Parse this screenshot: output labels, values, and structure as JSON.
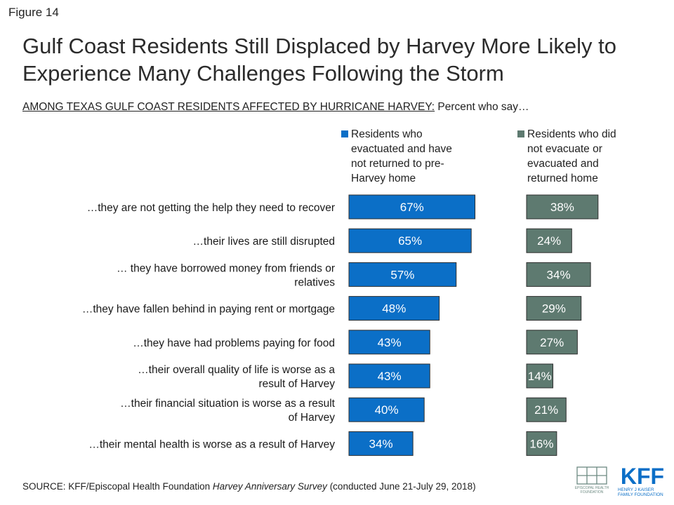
{
  "figure_label": "Figure 14",
  "title": "Gulf Coast Residents Still Displaced by Harvey More Likely to Experience Many Challenges Following the Storm",
  "subtitle": {
    "underlined": "AMONG TEXAS GULF COAST RESIDENTS AFFECTED BY HURRICANE HARVEY:",
    "rest": " Percent who say…"
  },
  "chart_data": {
    "type": "bar",
    "orientation": "horizontal",
    "categories": [
      "…they are not getting the help they need to recover",
      "…their lives are still disrupted",
      "… they have borrowed money from friends or relatives",
      "…they have fallen behind in paying rent or mortgage",
      "…they have had problems paying for food",
      "…their overall quality of life is worse as a result of Harvey",
      "…their financial situation is worse as a result of Harvey",
      "…their mental health is worse as a result of Harvey"
    ],
    "category_lines": [
      [
        "…they are not getting the help they need to recover"
      ],
      [
        "…their lives are still disrupted"
      ],
      [
        "… they have borrowed money from friends or",
        "relatives"
      ],
      [
        "…they have fallen behind in paying rent or mortgage"
      ],
      [
        "…they have had problems paying for food"
      ],
      [
        "…their overall quality of life is worse as a",
        "result of Harvey"
      ],
      [
        "…their financial situation is worse as a result",
        "of Harvey"
      ],
      [
        "…their mental health is worse as a result of Harvey"
      ]
    ],
    "series": [
      {
        "name": "Residents who evactuated and have not returned to pre-Harvey home",
        "legend_lines": [
          "Residents who",
          "evactuated and have",
          "not returned to pre-",
          "Harvey home"
        ],
        "color": "#0b6fc7",
        "values": [
          67,
          65,
          57,
          48,
          43,
          43,
          40,
          34
        ],
        "labels": [
          "67%",
          "65%",
          "57%",
          "48%",
          "43%",
          "43%",
          "40%",
          "34%"
        ]
      },
      {
        "name": "Residents who did not evacuate or evacuated and returned home",
        "legend_lines": [
          "Residents who did",
          "not evacuate or",
          "evacuated and",
          "returned home"
        ],
        "color": "#5e7a70",
        "values": [
          38,
          24,
          34,
          29,
          27,
          14,
          21,
          16
        ],
        "labels": [
          "38%",
          "24%",
          "34%",
          "29%",
          "27%",
          "14%",
          "21%",
          "16%"
        ]
      }
    ]
  },
  "source": {
    "prefix": "SOURCE: KFF/Episcopal Health Foundation ",
    "survey": "Harvey Anniversary Survey",
    "suffix": " (conducted June 21-July 29, 2018)"
  },
  "logos": {
    "ehf": [
      "EPISCOPAL HEALTH",
      "FOUNDATION"
    ],
    "kff": [
      "KFF",
      "HENRY J KAISER",
      "FAMILY FOUNDATION"
    ]
  }
}
